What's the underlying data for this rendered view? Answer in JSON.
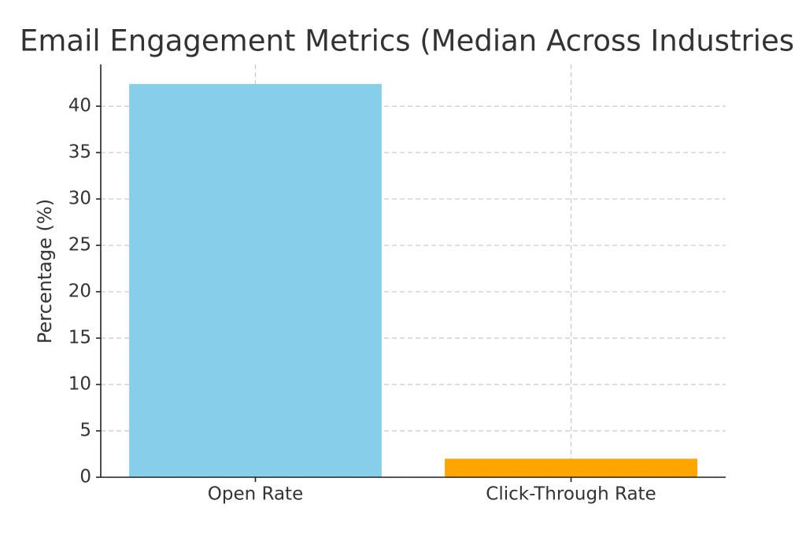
{
  "chart_data": {
    "type": "bar",
    "title": "Email Engagement Metrics (Median Across Industries",
    "ylabel": "Percentage (%)",
    "categories": [
      "Open Rate",
      "Click-Through Rate"
    ],
    "values": [
      42.4,
      2.0
    ],
    "colors": [
      "#87ceeb",
      "#ffa500"
    ],
    "ylim": [
      0,
      44.5
    ],
    "yticks": [
      0,
      5,
      10,
      15,
      20,
      25,
      30,
      35,
      40
    ],
    "grid": true
  }
}
